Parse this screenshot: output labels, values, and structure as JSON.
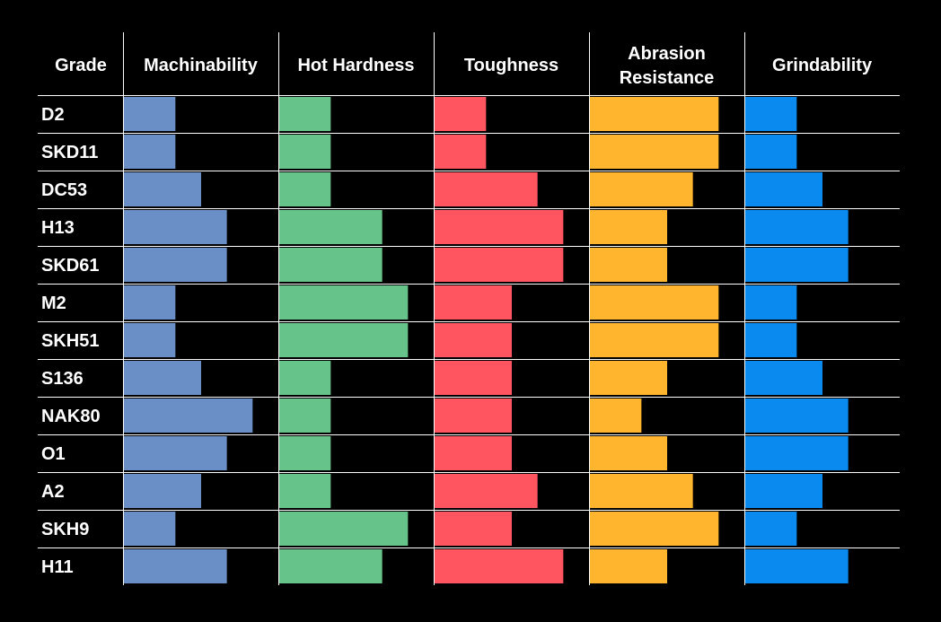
{
  "chart_data": {
    "type": "table",
    "header_label": "Grade",
    "columns": [
      {
        "name": "Machinability",
        "lines": [
          "Machinability"
        ],
        "color": "#6a8fc7"
      },
      {
        "name": "Hot Hardness",
        "lines": [
          "Hot Hardness"
        ],
        "color": "#66c48a"
      },
      {
        "name": "Toughness",
        "lines": [
          "Toughness"
        ],
        "color": "#ff5561"
      },
      {
        "name": "Abrasion Resistance",
        "lines": [
          "Abrasion",
          "Resistance"
        ],
        "color": "#ffb52e"
      },
      {
        "name": "Grindability",
        "lines": [
          "Grindability"
        ],
        "color": "#0a8aef"
      }
    ],
    "scale_max": 6,
    "rows": [
      {
        "grade": "D2",
        "values": [
          2,
          2,
          2,
          5,
          2
        ]
      },
      {
        "grade": "SKD11",
        "values": [
          2,
          2,
          2,
          5,
          2
        ]
      },
      {
        "grade": "DC53",
        "values": [
          3,
          2,
          4,
          4,
          3
        ]
      },
      {
        "grade": "H13",
        "values": [
          4,
          4,
          5,
          3,
          4
        ]
      },
      {
        "grade": "SKD61",
        "values": [
          4,
          4,
          5,
          3,
          4
        ]
      },
      {
        "grade": "M2",
        "values": [
          2,
          5,
          3,
          5,
          2
        ]
      },
      {
        "grade": "SKH51",
        "values": [
          2,
          5,
          3,
          5,
          2
        ]
      },
      {
        "grade": "S136",
        "values": [
          3,
          2,
          3,
          3,
          3
        ]
      },
      {
        "grade": "NAK80",
        "values": [
          5,
          2,
          3,
          2,
          4
        ]
      },
      {
        "grade": "O1",
        "values": [
          4,
          2,
          3,
          3,
          4
        ]
      },
      {
        "grade": "A2",
        "values": [
          3,
          2,
          4,
          4,
          3
        ]
      },
      {
        "grade": "SKH9",
        "values": [
          2,
          5,
          3,
          5,
          2
        ]
      },
      {
        "grade": "H11",
        "values": [
          4,
          4,
          5,
          3,
          4
        ]
      }
    ]
  }
}
